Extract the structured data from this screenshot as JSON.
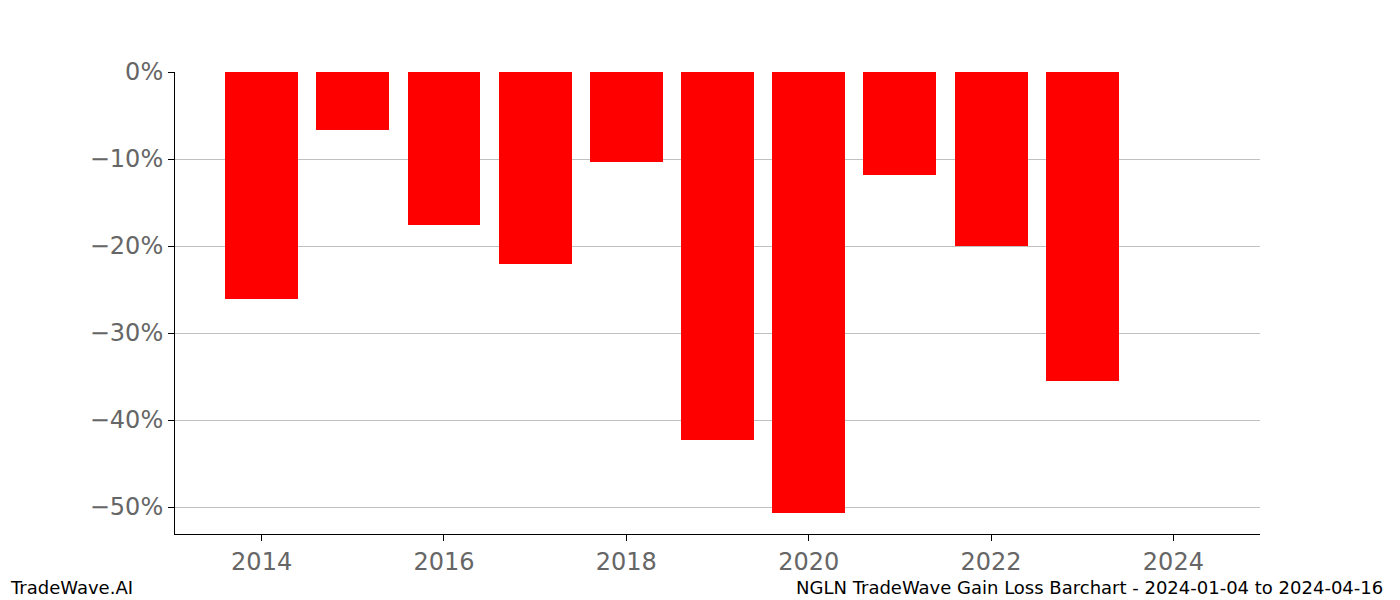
{
  "chart_data": {
    "type": "bar",
    "x": [
      2014,
      2015,
      2016,
      2017,
      2018,
      2019,
      2020,
      2021,
      2022,
      2023
    ],
    "values": [
      -26.1,
      -6.7,
      -17.6,
      -22.1,
      -10.3,
      -42.3,
      -50.7,
      -11.8,
      -20.0,
      -35.5
    ],
    "color": "#ff0000",
    "xlim": [
      2013.05,
      2024.95
    ],
    "xticks": [
      2014,
      2016,
      2018,
      2020,
      2022,
      2024
    ],
    "ylim": [
      -53.1,
      0
    ],
    "yticks": [
      {
        "value": 0,
        "label": "0%"
      },
      {
        "value": -10,
        "label": "−10%"
      },
      {
        "value": -20,
        "label": "−20%"
      },
      {
        "value": -30,
        "label": "−30%"
      },
      {
        "value": -40,
        "label": "−40%"
      },
      {
        "value": -50,
        "label": "−50%"
      }
    ],
    "grid": true,
    "annotations": [
      "TradeWave.AI",
      "NGLN TradeWave Gain Loss Barchart - 2024-01-04 to 2024-04-16"
    ]
  }
}
